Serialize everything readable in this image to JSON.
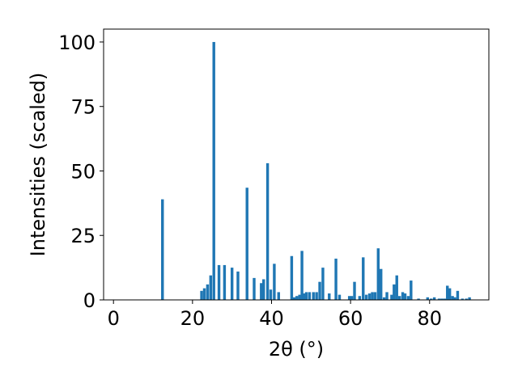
{
  "chart_data": {
    "type": "bar",
    "xlabel": "2θ (°)",
    "ylabel": "Intensities (scaled)",
    "xlim": [
      -2.5,
      95
    ],
    "ylim": [
      0,
      105
    ],
    "xticks": [
      0,
      20,
      40,
      60,
      80
    ],
    "yticks": [
      0,
      25,
      50,
      75,
      100
    ],
    "grid": false,
    "bar_color": "#1f77b4",
    "x": [
      12.4,
      22.3,
      23.0,
      23.8,
      24.6,
      25.4,
      26.7,
      28.1,
      30.0,
      31.5,
      33.8,
      35.6,
      37.4,
      38.0,
      39.0,
      39.8,
      40.7,
      41.8,
      45.1,
      45.7,
      46.4,
      47.1,
      47.7,
      48.2,
      48.8,
      49.6,
      50.6,
      51.4,
      52.2,
      53.0,
      54.6,
      56.3,
      57.2,
      59.7,
      60.3,
      61.0,
      62.3,
      63.2,
      64.0,
      64.8,
      65.5,
      66.2,
      67.0,
      67.7,
      68.5,
      69.2,
      70.4,
      71.0,
      71.7,
      72.4,
      73.2,
      73.8,
      74.6,
      75.3,
      77.2,
      79.5,
      80.4,
      81.2,
      82.4,
      83.1,
      83.8,
      84.5,
      85.1,
      85.8,
      86.4,
      87.1,
      88.3,
      89.3,
      90.1
    ],
    "values": [
      39,
      3.5,
      4.5,
      6,
      9.5,
      100,
      13.5,
      13.5,
      12.5,
      11,
      43.5,
      8.5,
      6.5,
      8,
      53,
      4,
      14,
      3,
      17,
      1,
      1.5,
      2,
      19,
      2.5,
      3,
      3,
      3,
      3,
      7,
      12.5,
      2.5,
      16,
      2,
      1.5,
      1.5,
      7,
      1.5,
      16.5,
      2,
      2.5,
      3,
      3,
      20,
      12,
      1,
      3,
      2,
      6,
      9.5,
      1.5,
      3,
      2.5,
      1.5,
      7.5,
      0.5,
      1,
      0.5,
      1,
      0.5,
      0.5,
      0.5,
      5.5,
      4.5,
      1.5,
      1,
      3.5,
      0.5,
      0.5,
      1
    ]
  }
}
